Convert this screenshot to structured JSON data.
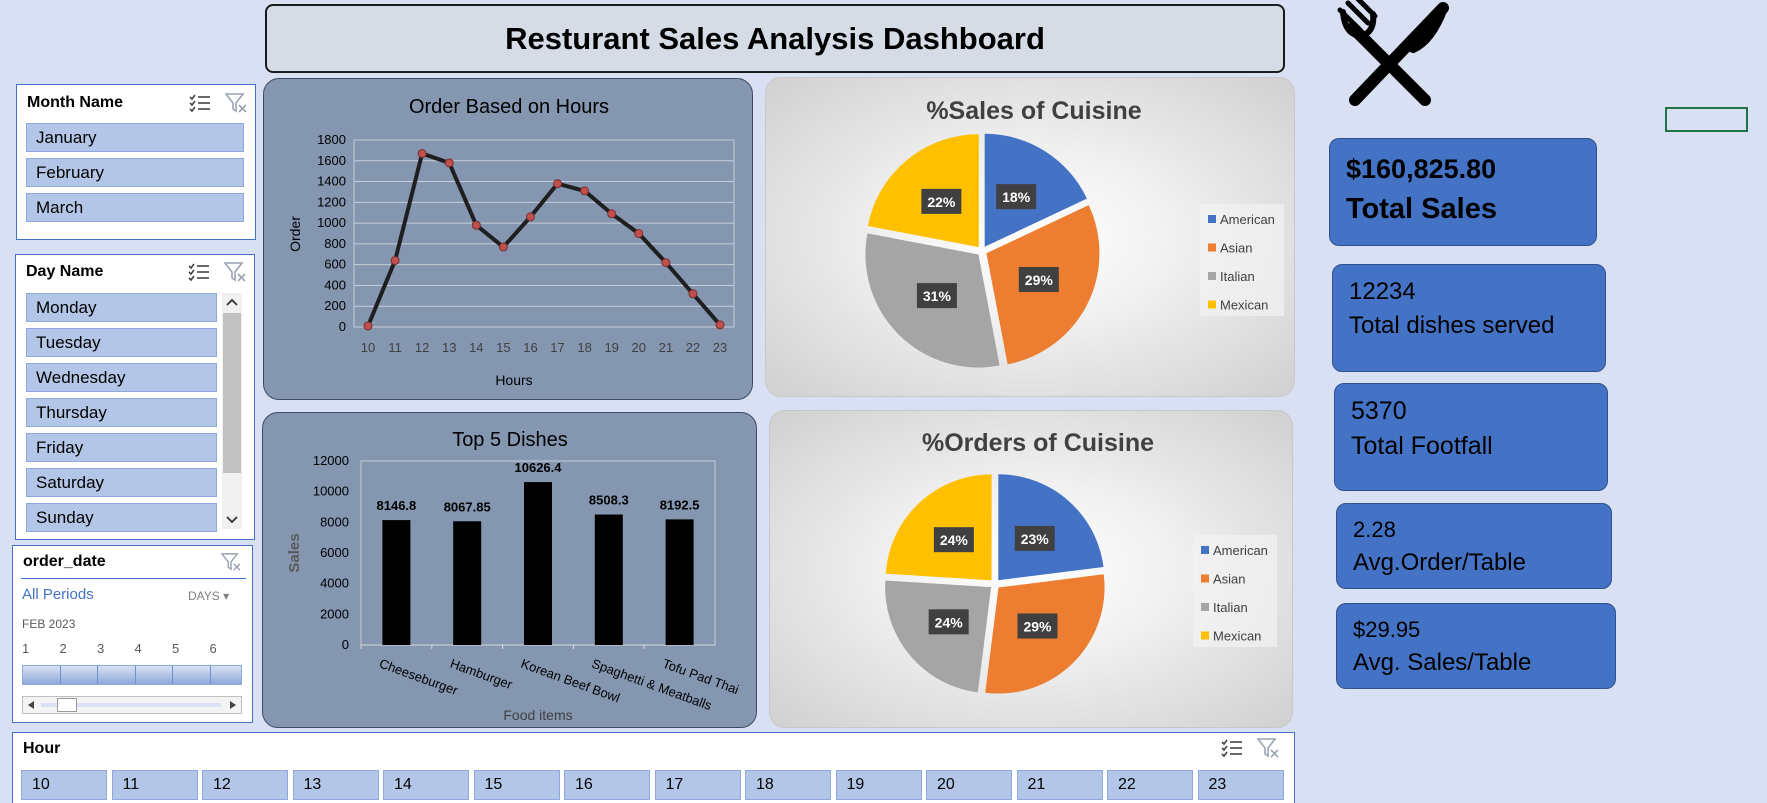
{
  "dashboard": {
    "title": "Resturant Sales Analysis Dashboard"
  },
  "icons": {
    "logo": "fork-knife-icon",
    "select": "multi-select-icon",
    "clear": "clear-filter-icon"
  },
  "month_slicer": {
    "title": "Month Name",
    "items": [
      "January",
      "February",
      "March"
    ]
  },
  "day_slicer": {
    "title": "Day Name",
    "items": [
      "Monday",
      "Tuesday",
      "Wednesday",
      "Thursday",
      "Friday",
      "Saturday",
      "Sunday"
    ]
  },
  "timeline": {
    "title": "order_date",
    "period": "All Periods",
    "unit": "DAYS",
    "month": "FEB 2023",
    "days": [
      "1",
      "2",
      "3",
      "4",
      "5",
      "6"
    ]
  },
  "hour_slicer": {
    "title": "Hour",
    "items": [
      "10",
      "11",
      "12",
      "13",
      "14",
      "15",
      "16",
      "17",
      "18",
      "19",
      "20",
      "21",
      "22",
      "23"
    ]
  },
  "kpis": [
    {
      "value": "$160,825.80",
      "label": "Total Sales"
    },
    {
      "value": "12234",
      "label": "Total dishes served"
    },
    {
      "value": "5370",
      "label": "Total Footfall"
    },
    {
      "value": "2.28",
      "label": "Avg.Order/Table"
    },
    {
      "value": "$29.95",
      "label": "Avg. Sales/Table"
    }
  ],
  "colors": {
    "american": "#4472c4",
    "asian": "#ed7d31",
    "italian": "#a5a5a5",
    "mexican": "#ffc000",
    "panel": "#8496b0",
    "accent": "#4472c4"
  },
  "chart_data": [
    {
      "type": "line",
      "title": "Order Based on Hours",
      "xlabel": "Hours",
      "ylabel": "Order",
      "x": [
        "10",
        "11",
        "12",
        "13",
        "14",
        "15",
        "16",
        "17",
        "18",
        "19",
        "20",
        "21",
        "22",
        "23"
      ],
      "values": [
        10,
        640,
        1670,
        1580,
        980,
        770,
        1060,
        1380,
        1310,
        1090,
        900,
        620,
        320,
        20
      ],
      "ylim": [
        0,
        1800
      ],
      "yticks": [
        "0",
        "200",
        "400",
        "600",
        "800",
        "1000",
        "1200",
        "1400",
        "1600",
        "1800"
      ],
      "grid": true
    },
    {
      "type": "bar",
      "title": "Top 5 Dishes",
      "xlabel": "Food items",
      "ylabel": "Sales",
      "categories": [
        "Cheeseburger",
        "Hamburger",
        "Korean Beef Bowl",
        "Spaghetti & Meatballs",
        "Tofu Pad Thai"
      ],
      "values": [
        8146.8,
        8067.85,
        10626.4,
        8508.3,
        8192.5
      ],
      "data_labels": [
        "8146.8",
        "8067.85",
        "10626.4",
        "8508.3",
        "8192.5"
      ],
      "ylim": [
        0,
        12000
      ],
      "yticks": [
        "0",
        "2000",
        "4000",
        "6000",
        "8000",
        "10000",
        "12000"
      ]
    },
    {
      "type": "pie",
      "title": "%Sales of Cuisine",
      "labels": [
        "American",
        "Asian",
        "Italian",
        "Mexican"
      ],
      "values": [
        18,
        29,
        31,
        22
      ],
      "data_labels": [
        "18%",
        "29%",
        "31%",
        "22%"
      ],
      "legend": "right"
    },
    {
      "type": "pie",
      "title": "%Orders of Cuisine",
      "labels": [
        "American",
        "Asian",
        "Italian",
        "Mexican"
      ],
      "values": [
        23,
        29,
        24,
        24
      ],
      "data_labels": [
        "23%",
        "29%",
        "24%",
        "24%"
      ],
      "legend": "right"
    }
  ]
}
